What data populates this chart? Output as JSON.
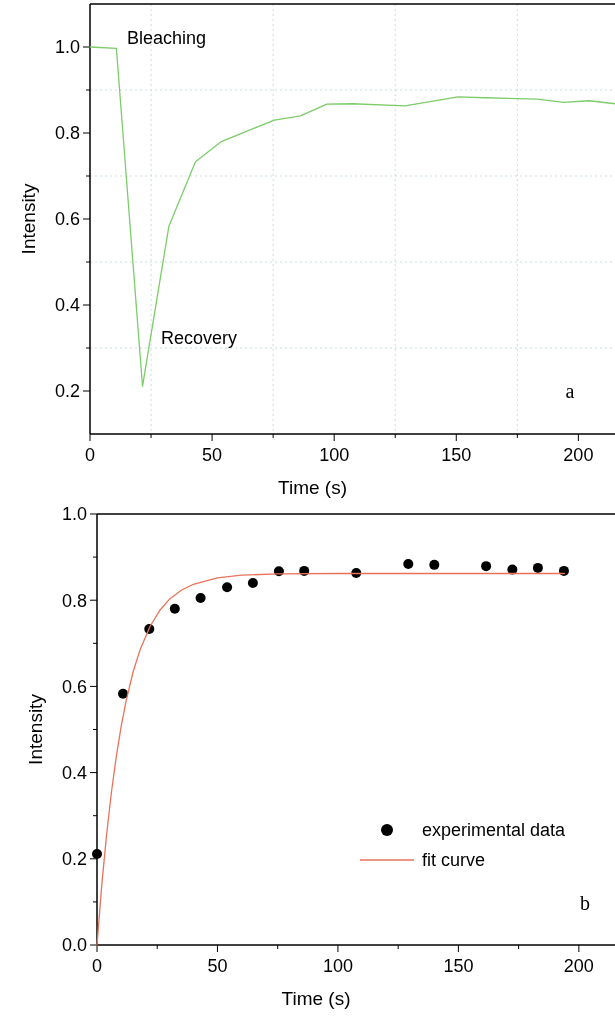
{
  "chart_data": [
    {
      "type": "line",
      "xlabel": "Time (s)",
      "ylabel": "Intensity",
      "xlim": [
        0,
        215
      ],
      "ylim": [
        0.1,
        1.1
      ],
      "xticks": [
        0,
        {
          "value": 25,
          "label": null
        },
        50,
        {
          "value": 75,
          "label": null
        },
        100,
        {
          "value": 125,
          "label": null
        },
        150,
        {
          "value": 175,
          "label": null
        },
        200
      ],
      "yticks": [
        {
          "value": 0.2,
          "label": "0.2"
        },
        {
          "value": 0.3,
          "label": null
        },
        {
          "value": 0.4,
          "label": "0.4"
        },
        {
          "value": 0.5,
          "label": null
        },
        {
          "value": 0.6,
          "label": "0.6"
        },
        {
          "value": 0.7,
          "label": null
        },
        {
          "value": 0.8,
          "label": "0.8"
        },
        {
          "value": 0.9,
          "label": null
        },
        {
          "value": 1.0,
          "label": "1.0"
        }
      ],
      "grid": true,
      "marker": "none",
      "annotations": [
        "Bleaching",
        "Recovery",
        "a"
      ],
      "series": [
        {
          "color": "#7ccc6a",
          "x": [
            0,
            10.8,
            21.5,
            32.3,
            43.2,
            53.8,
            64.5,
            75.5,
            86.2,
            97,
            107.5,
            129,
            150.7,
            161.5,
            183,
            194,
            204.5,
            215
          ],
          "values": [
            1.0,
            0.997,
            0.211,
            0.583,
            0.733,
            0.78,
            0.805,
            0.83,
            0.84,
            0.867,
            0.868,
            0.863,
            0.884,
            0.882,
            0.879,
            0.871,
            0.875,
            0.868
          ]
        }
      ]
    },
    {
      "type": "scatter",
      "xlabel": "Time (s)",
      "ylabel": "Intensity",
      "xlim": [
        0,
        215
      ],
      "ylim": [
        0,
        1
      ],
      "xticks": [
        0,
        {
          "value": 25,
          "label": null
        },
        50,
        {
          "value": 75,
          "label": null
        },
        100,
        {
          "value": 125,
          "label": null
        },
        150,
        {
          "value": 175,
          "label": null
        },
        200
      ],
      "yticks": [
        {
          "value": 0,
          "label": "0.0"
        },
        {
          "value": 0.1,
          "label": null
        },
        {
          "value": 0.2,
          "label": "0.2"
        },
        {
          "value": 0.3,
          "label": null
        },
        {
          "value": 0.4,
          "label": "0.4"
        },
        {
          "value": 0.5,
          "label": null
        },
        {
          "value": 0.6,
          "label": "0.6"
        },
        {
          "value": 0.7,
          "label": null
        },
        {
          "value": 0.8,
          "label": "0.8"
        },
        {
          "value": 0.9,
          "label": null
        },
        {
          "value": 1.0,
          "label": "1.0"
        }
      ],
      "legend": "bottom right",
      "marker": "circle",
      "annotations": [
        "b"
      ],
      "series": [
        {
          "name": "experimental data",
          "color": "#000000",
          "x": [
            0,
            10.8,
            21.7,
            32.3,
            43,
            54,
            64.7,
            75.5,
            86,
            107.6,
            129.2,
            140,
            161.5,
            172.4,
            183,
            193.8
          ],
          "values": [
            0.211,
            0.583,
            0.733,
            0.78,
            0.805,
            0.83,
            0.84,
            0.867,
            0.868,
            0.863,
            0.884,
            0.882,
            0.879,
            0.871,
            0.875,
            0.868
          ]
        },
        {
          "type": "line",
          "name": "fit curve",
          "color": "#e8735a",
          "marker": "none",
          "x": [
            0,
            2,
            4,
            6,
            8,
            10,
            12,
            15,
            18,
            22,
            26,
            30,
            35,
            40,
            50,
            60,
            75,
            100,
            150,
            194
          ],
          "values": [
            0,
            0.14,
            0.257,
            0.355,
            0.437,
            0.506,
            0.564,
            0.634,
            0.687,
            0.739,
            0.776,
            0.802,
            0.823,
            0.837,
            0.852,
            0.858,
            0.861,
            0.862,
            0.862,
            0.862
          ]
        }
      ]
    }
  ]
}
